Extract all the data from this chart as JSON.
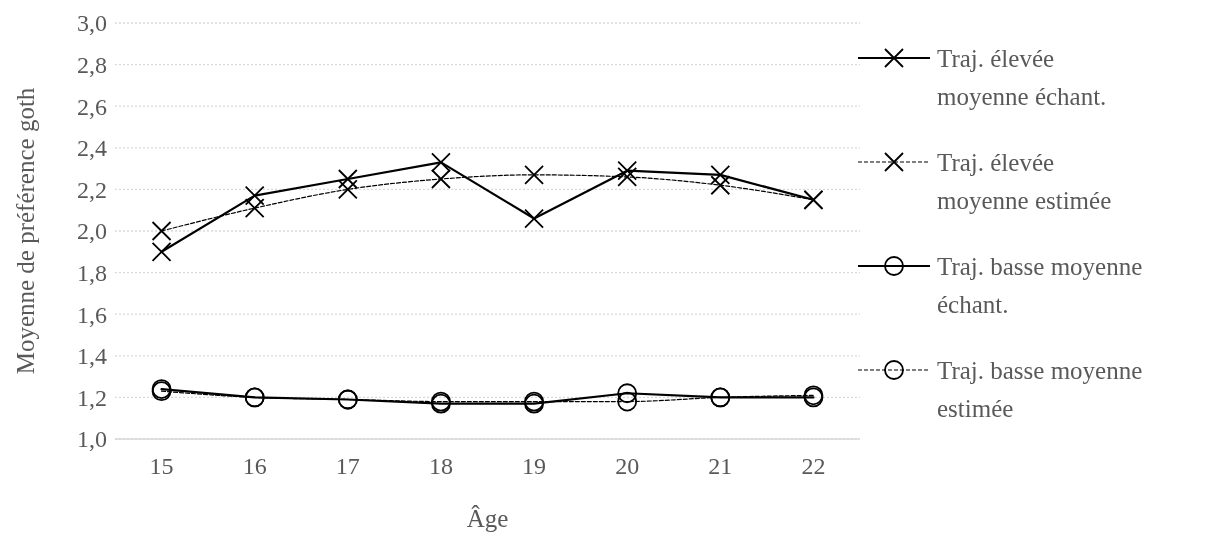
{
  "chart_data": {
    "type": "line",
    "xlabel": "Âge",
    "ylabel": "Moyenne de préférence goth",
    "categories": [
      "15",
      "16",
      "17",
      "18",
      "19",
      "20",
      "21",
      "22"
    ],
    "ylim": [
      1.0,
      3.0
    ],
    "yticks": [
      {
        "value": 1.0,
        "label": "1,0"
      },
      {
        "value": 1.2,
        "label": "1,2"
      },
      {
        "value": 1.4,
        "label": "1,4"
      },
      {
        "value": 1.6,
        "label": "1,6"
      },
      {
        "value": 1.8,
        "label": "1,8"
      },
      {
        "value": 2.0,
        "label": "2,0"
      },
      {
        "value": 2.2,
        "label": "2,2"
      },
      {
        "value": 2.4,
        "label": "2,4"
      },
      {
        "value": 2.6,
        "label": "2,6"
      },
      {
        "value": 2.8,
        "label": "2,8"
      },
      {
        "value": 3.0,
        "label": "3,0"
      }
    ],
    "grid": "y",
    "legend": "right",
    "series": [
      {
        "name": "Traj. élevée moyenne échant.",
        "color": "#000000",
        "marker": "cross",
        "line_style": "solid",
        "values": [
          1.9,
          2.17,
          2.25,
          2.33,
          2.06,
          2.29,
          2.27,
          2.15
        ]
      },
      {
        "name": "Traj. élevée moyenne estimée",
        "color": "#000000",
        "marker": "cross",
        "line_style": "dashed",
        "values": [
          2.0,
          2.11,
          2.2,
          2.25,
          2.27,
          2.26,
          2.22,
          2.15
        ]
      },
      {
        "name": "Traj. basse moyenne échant.",
        "color": "#000000",
        "marker": "circle",
        "line_style": "solid",
        "values": [
          1.24,
          1.2,
          1.19,
          1.17,
          1.17,
          1.22,
          1.2,
          1.2
        ]
      },
      {
        "name": "Traj. basse moyenne estimée",
        "color": "#000000",
        "marker": "circle",
        "line_style": "dashed",
        "values": [
          1.23,
          1.2,
          1.19,
          1.18,
          1.18,
          1.18,
          1.2,
          1.21
        ]
      }
    ]
  }
}
